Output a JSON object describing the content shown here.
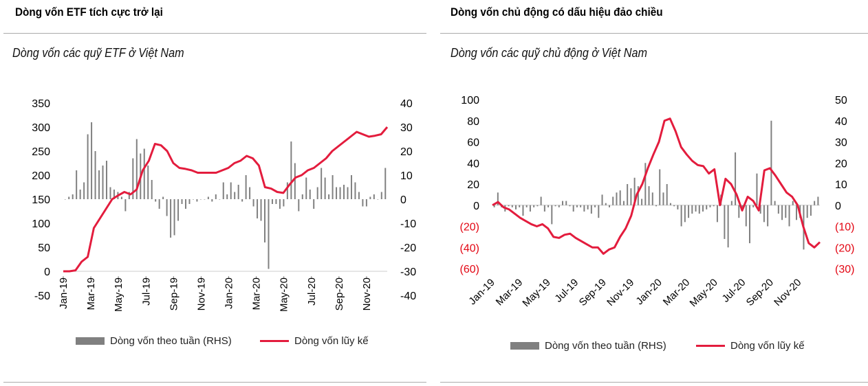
{
  "left": {
    "title": "Dòng vốn ETF tích cực trở lại",
    "subtitle": "Dòng vốn các quỹ ETF ở Việt Nam",
    "legend": {
      "bar": "Dòng vốn theo tuần (RHS)",
      "line": "Dòng vốn lũy kế"
    }
  },
  "right": {
    "title": "Dòng vốn chủ động có dấu hiệu đảo chiều",
    "subtitle": "Dòng vốn các quỹ chủ động ở Việt Nam",
    "legend": {
      "bar": "Dòng vốn theo tuần (RHS)",
      "line": "Dòng vốn lũy kế"
    }
  },
  "chart_data": [
    {
      "type": "bar+line",
      "x_range": [
        "Jan-19",
        "Dec-20"
      ],
      "x_tick_labels": [
        "Jan-19",
        "Mar-19",
        "May-19",
        "Jul-19",
        "Sep-19",
        "Nov-19",
        "Jan-20",
        "Mar-20",
        "May-20",
        "Jul-20",
        "Sep-20",
        "Nov-20"
      ],
      "y_left": {
        "range": [
          -50,
          350
        ],
        "ticks": [
          "350",
          "300",
          "250",
          "200",
          "150",
          "100",
          "50",
          "0",
          "-50"
        ]
      },
      "y_right": {
        "range": [
          -40,
          40
        ],
        "ticks": [
          "40",
          "30",
          "20",
          "10",
          "0",
          "-10",
          "-20",
          "-30",
          "-40"
        ]
      },
      "colors": {
        "bar": "#808080",
        "line": "#e31c3d"
      },
      "series": [
        {
          "name": "Dòng vốn theo tuần (RHS)",
          "axis": "right",
          "kind": "bar",
          "values": [
            0,
            1,
            2,
            12,
            4,
            7,
            27,
            32,
            20,
            12,
            14,
            16,
            5,
            4,
            3,
            1,
            -5,
            3,
            17,
            25,
            19,
            21,
            14,
            8,
            -1,
            -4,
            1,
            -7,
            -16,
            -15,
            -9,
            -2,
            -4,
            -2,
            0,
            -1,
            0,
            0,
            1,
            -1,
            2,
            0,
            7,
            2,
            7,
            3,
            6,
            -1,
            10,
            5,
            -3,
            -8,
            -9,
            -18,
            -29,
            -2,
            -2,
            -4,
            -3,
            7,
            24,
            15,
            -5,
            2,
            9,
            4,
            -4,
            5,
            13,
            9,
            2,
            10,
            5,
            5,
            6,
            5,
            10,
            7,
            3,
            -3,
            -3,
            1,
            2,
            0,
            3,
            13
          ]
        },
        {
          "name": "Dòng vốn lũy kế",
          "axis": "left",
          "kind": "line",
          "values": [
            0,
            0,
            2,
            20,
            30,
            90,
            110,
            130,
            150,
            158,
            165,
            160,
            170,
            210,
            230,
            265,
            262,
            250,
            225,
            215,
            213,
            210,
            205,
            205,
            205,
            205,
            210,
            215,
            225,
            230,
            240,
            235,
            220,
            175,
            172,
            165,
            163,
            180,
            195,
            200,
            210,
            215,
            225,
            235,
            250,
            260,
            270,
            280,
            290,
            285,
            280,
            282,
            285,
            300
          ]
        }
      ]
    },
    {
      "type": "bar+line",
      "x_range": [
        "Jan-19",
        "Dec-20"
      ],
      "x_tick_labels": [
        "Jan-19",
        "Mar-19",
        "May-19",
        "Jul-19",
        "Sep-19",
        "Nov-19",
        "Jan-20",
        "Mar-20",
        "May-20",
        "Jul-20",
        "Sep-20",
        "Nov-20"
      ],
      "y_left": {
        "range": [
          -60,
          100
        ],
        "ticks": [
          "100",
          "80",
          "60",
          "40",
          "20",
          "0",
          "(20)",
          "(40)",
          "(60)"
        ]
      },
      "y_right": {
        "range": [
          -30,
          50
        ],
        "ticks": [
          "50",
          "40",
          "30",
          "20",
          "10",
          "0",
          "(10)",
          "(20)",
          "(30)"
        ]
      },
      "colors": {
        "bar": "#808080",
        "line": "#e31c3d",
        "negative_tick": "#e30613"
      },
      "series": [
        {
          "name": "Dòng vốn theo tuần (RHS)",
          "axis": "right",
          "kind": "bar",
          "values": [
            -1,
            6,
            -1,
            -3,
            -0.5,
            -1,
            -2,
            -1,
            -5,
            -1,
            -3,
            -1,
            -0.5,
            4,
            -3,
            -1,
            -9,
            -0.5,
            -1,
            2,
            2,
            -0.5,
            -3,
            -1,
            -1,
            -3,
            -2,
            -4,
            -1,
            -6,
            5,
            1,
            -1,
            4,
            6,
            7,
            2,
            10,
            8,
            13,
            9,
            3,
            20,
            9,
            6,
            -0.5,
            17,
            6,
            10,
            1,
            -0.5,
            -2,
            -10,
            -8,
            -6,
            -4,
            -3,
            -4,
            -3,
            -2,
            -1,
            -0.5,
            -8,
            5,
            -16,
            -20,
            2,
            25,
            -6,
            -1,
            -10,
            -18,
            -1,
            15,
            -4,
            -8,
            -10,
            40,
            2,
            -4,
            -7,
            -6,
            -10,
            2,
            -7,
            -6,
            -21,
            -6,
            -5,
            2,
            4
          ]
        },
        {
          "name": "Dòng vốn lũy kế",
          "axis": "left",
          "kind": "line",
          "values": [
            0,
            3,
            -2,
            -4,
            -8,
            -12,
            -15,
            -18,
            -20,
            -18,
            -22,
            -30,
            -31,
            -28,
            -27,
            -31,
            -34,
            -37,
            -40,
            -40,
            -46,
            -42,
            -40,
            -30,
            -22,
            -10,
            10,
            20,
            35,
            48,
            60,
            80,
            82,
            70,
            55,
            48,
            42,
            38,
            37,
            30,
            34,
            0,
            25,
            20,
            10,
            -5,
            8,
            4,
            -5,
            33,
            35,
            28,
            20,
            12,
            8,
            0,
            -20,
            -36,
            -40,
            -35
          ]
        }
      ]
    }
  ]
}
